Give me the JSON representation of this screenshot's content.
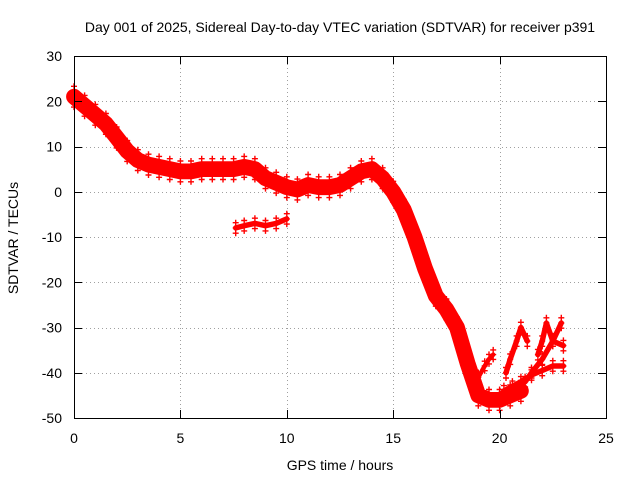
{
  "chart_data": {
    "type": "scatter",
    "title": "Day 001 of 2025, Sidereal Day-to-day VTEC variation (SDTVAR) for receiver p391",
    "xlabel": "GPS time / hours",
    "ylabel": "SDTVAR / TECUs",
    "xlim": [
      0,
      25
    ],
    "ylim": [
      -50,
      30
    ],
    "xticks": [
      0,
      5,
      10,
      15,
      20,
      25
    ],
    "yticks": [
      -50,
      -40,
      -30,
      -20,
      -10,
      0,
      10,
      20,
      30
    ],
    "grid": true,
    "legend": "none",
    "marker": "+",
    "series": [
      {
        "name": "SDTVAR",
        "color": "#ff0000",
        "segments": [
          {
            "band_tecu": 3.5,
            "x": [
              0.0,
              0.5,
              1.0,
              1.5,
              2.0,
              2.5,
              3.0,
              3.5,
              4.0,
              4.5,
              5.0,
              5.5,
              6.0,
              6.5,
              7.0,
              7.5,
              8.0,
              8.5,
              9.0,
              9.5,
              10.0,
              10.5,
              11.0,
              11.5,
              12.0,
              12.5,
              13.0,
              13.5,
              14.0,
              14.5,
              15.0,
              15.5,
              16.0,
              16.5,
              17.0,
              17.5,
              18.0,
              18.5,
              19.0,
              19.5,
              20.0,
              20.5,
              21.0
            ],
            "y": [
              21,
              19,
              17,
              15,
              12,
              9,
              7,
              6,
              5.5,
              5,
              4.5,
              4.5,
              5,
              5,
              5,
              5,
              5.5,
              5,
              3,
              2,
              1,
              0.5,
              1.5,
              1,
              1,
              1.5,
              3,
              4.5,
              5,
              3,
              0,
              -4,
              -10,
              -17,
              -23,
              -26,
              -30,
              -38,
              -45,
              -46,
              -46,
              -45,
              -44
            ]
          },
          {
            "band_tecu": 1.2,
            "x": [
              7.6,
              8.0,
              8.5,
              9.0,
              9.5,
              10.0
            ],
            "y": [
              -8,
              -7.5,
              -7,
              -7.5,
              -7,
              -6
            ]
          },
          {
            "band_tecu": 1.2,
            "x": [
              20.2,
              20.6,
              21.0,
              21.5,
              22.0,
              22.5,
              23.0
            ],
            "y": [
              -44,
              -43,
              -42,
              -40.5,
              -39.5,
              -38.5,
              -38.5
            ]
          },
          {
            "band_tecu": 1.2,
            "x": [
              21.2,
              21.5,
              22.0,
              22.5,
              22.9
            ],
            "y": [
              -42,
              -40,
              -37,
              -33,
              -29
            ]
          },
          {
            "band_tecu": 1.2,
            "x": [
              21.8,
              22.0,
              22.2,
              22.5,
              23.0
            ],
            "y": [
              -36,
              -33,
              -29,
              -33,
              -34
            ]
          },
          {
            "band_tecu": 1.2,
            "x": [
              20.3,
              20.5,
              20.8,
              21.0,
              21.3
            ],
            "y": [
              -40,
              -37,
              -33,
              -30,
              -33
            ]
          },
          {
            "band_tecu": 1.0,
            "x": [
              19.0,
              19.3,
              19.5,
              19.7
            ],
            "y": [
              -41,
              -38.5,
              -37,
              -36
            ]
          }
        ]
      }
    ]
  }
}
